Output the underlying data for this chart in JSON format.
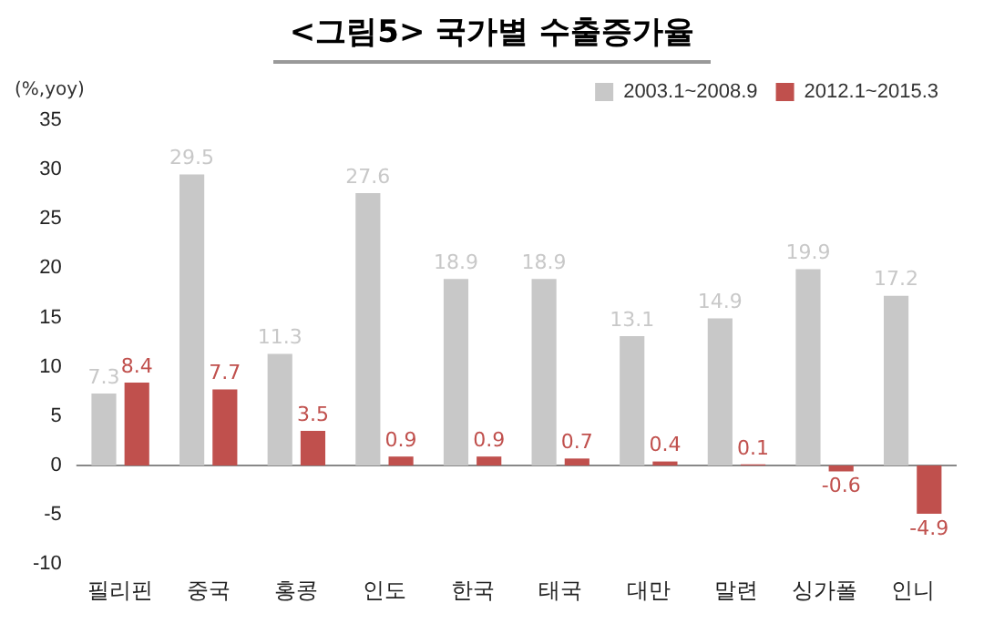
{
  "chart_data": {
    "type": "bar",
    "title": "<그림5> 국가별 수출증가율",
    "ylabel": "(%,yoy)",
    "categories": [
      "필리핀",
      "중국",
      "홍콩",
      "인도",
      "한국",
      "태국",
      "대만",
      "말련",
      "싱가폴",
      "인니"
    ],
    "series": [
      {
        "name": "2003.1~2008.9",
        "color": "#c8c8c8",
        "values": [
          7.3,
          29.5,
          11.3,
          27.6,
          18.9,
          18.9,
          13.1,
          14.9,
          19.9,
          17.2
        ]
      },
      {
        "name": "2012.1~2015.3",
        "color": "#c0504d",
        "values": [
          8.4,
          7.7,
          3.5,
          0.9,
          0.9,
          0.7,
          0.4,
          0.1,
          -0.6,
          -4.9
        ]
      }
    ],
    "ylim": [
      -10,
      35
    ],
    "yticks": [
      -10,
      -5,
      0,
      5,
      10,
      15,
      20,
      25,
      30,
      35
    ],
    "grid": false,
    "ref_lines": [
      {
        "axis": "y",
        "value": 0,
        "color": "#888888"
      }
    ],
    "legend": "top right",
    "data_labels": true
  }
}
